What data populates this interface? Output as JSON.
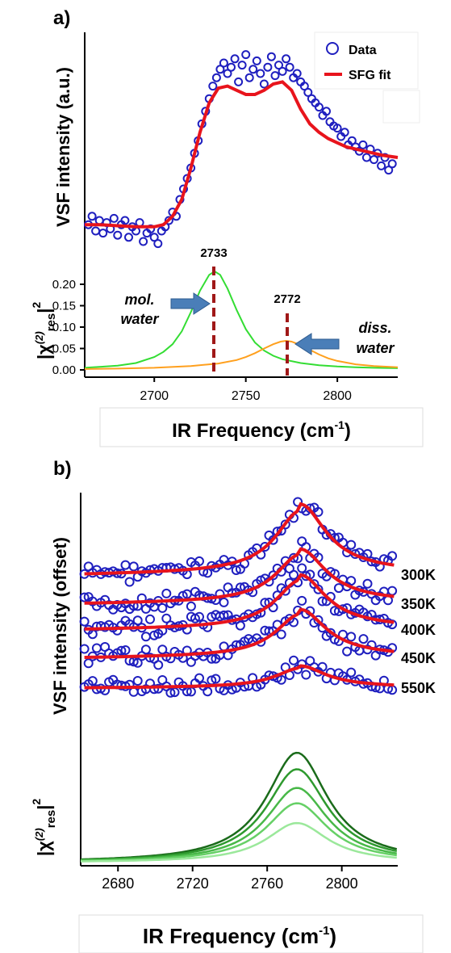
{
  "chart_data": [
    {
      "panel_label": "a)",
      "type": "scatter",
      "ylabel": "VSF intensity (a.u.)",
      "xlim": [
        2662,
        2833
      ],
      "ylim": [
        0,
        1
      ],
      "legend": {
        "placement": "top-right",
        "entries": [
          "Data",
          "SFG fit"
        ]
      },
      "series": [
        {
          "name": "Data",
          "type": "scatter",
          "color": "#1f1fbf",
          "x": [
            2664,
            2666,
            2668,
            2670,
            2672,
            2674,
            2676,
            2678,
            2680,
            2682,
            2684,
            2686,
            2688,
            2690,
            2692,
            2694,
            2696,
            2698,
            2700,
            2702,
            2704,
            2706,
            2708,
            2710,
            2712,
            2714,
            2716,
            2718,
            2720,
            2722,
            2724,
            2726,
            2728,
            2730,
            2732,
            2734,
            2736,
            2738,
            2740,
            2742,
            2744,
            2746,
            2748,
            2750,
            2752,
            2754,
            2756,
            2758,
            2760,
            2762,
            2764,
            2766,
            2768,
            2770,
            2772,
            2774,
            2776,
            2778,
            2780,
            2782,
            2784,
            2786,
            2788,
            2790,
            2792,
            2794,
            2796,
            2798,
            2800,
            2802,
            2804,
            2806,
            2808,
            2810,
            2812,
            2814,
            2816,
            2818,
            2820,
            2822,
            2824,
            2826,
            2828,
            2830
          ],
          "y": [
            0.18,
            0.22,
            0.15,
            0.2,
            0.14,
            0.19,
            0.16,
            0.21,
            0.13,
            0.18,
            0.2,
            0.12,
            0.17,
            0.15,
            0.19,
            0.1,
            0.14,
            0.16,
            0.12,
            0.09,
            0.15,
            0.17,
            0.2,
            0.24,
            0.22,
            0.3,
            0.35,
            0.4,
            0.45,
            0.52,
            0.58,
            0.66,
            0.72,
            0.78,
            0.84,
            0.88,
            0.92,
            0.95,
            0.9,
            0.93,
            0.97,
            0.86,
            0.94,
            0.99,
            0.88,
            0.92,
            0.96,
            0.9,
            0.85,
            0.93,
            0.98,
            0.89,
            0.94,
            0.91,
            0.97,
            0.93,
            0.88,
            0.9,
            0.86,
            0.84,
            0.81,
            0.78,
            0.76,
            0.74,
            0.7,
            0.72,
            0.67,
            0.65,
            0.64,
            0.6,
            0.62,
            0.56,
            0.58,
            0.55,
            0.53,
            0.56,
            0.5,
            0.54,
            0.49,
            0.52,
            0.46,
            0.5,
            0.44,
            0.47
          ]
        },
        {
          "name": "SFG fit",
          "type": "line",
          "color": "#e8141c",
          "x": [
            2662,
            2670,
            2680,
            2690,
            2700,
            2705,
            2710,
            2715,
            2720,
            2725,
            2730,
            2735,
            2740,
            2745,
            2750,
            2755,
            2760,
            2765,
            2770,
            2775,
            2780,
            2785,
            2790,
            2795,
            2800,
            2805,
            2810,
            2815,
            2820,
            2825,
            2833
          ],
          "y": [
            0.18,
            0.18,
            0.175,
            0.17,
            0.17,
            0.18,
            0.22,
            0.3,
            0.45,
            0.62,
            0.76,
            0.83,
            0.84,
            0.82,
            0.8,
            0.8,
            0.82,
            0.85,
            0.86,
            0.82,
            0.73,
            0.66,
            0.62,
            0.59,
            0.57,
            0.55,
            0.54,
            0.53,
            0.52,
            0.51,
            0.5
          ]
        }
      ]
    },
    {
      "panel_label": "a)",
      "type": "line",
      "ylabel": "|χ(2)res|2",
      "xlabel": "IR Frequency (cm-1)",
      "xlim": [
        2662,
        2833
      ],
      "ylim": [
        0,
        0.25
      ],
      "xticks": [
        2700,
        2750,
        2800
      ],
      "yticks": [
        "0.00",
        "0.05",
        "0.10",
        "0.15",
        "0.20"
      ],
      "series": [
        {
          "type": "line",
          "color": "#33dd33",
          "x": [
            2662,
            2670,
            2680,
            2690,
            2700,
            2705,
            2710,
            2715,
            2720,
            2725,
            2730,
            2733,
            2736,
            2740,
            2745,
            2750,
            2755,
            2760,
            2765,
            2770,
            2780,
            2790,
            2800,
            2810,
            2820,
            2833
          ],
          "y": [
            0.005,
            0.007,
            0.01,
            0.016,
            0.03,
            0.042,
            0.06,
            0.09,
            0.135,
            0.185,
            0.222,
            0.23,
            0.222,
            0.19,
            0.14,
            0.095,
            0.064,
            0.045,
            0.033,
            0.025,
            0.016,
            0.011,
            0.008,
            0.006,
            0.005,
            0.004
          ]
        },
        {
          "type": "line",
          "color": "#ffa01e",
          "x": [
            2662,
            2680,
            2700,
            2720,
            2735,
            2745,
            2750,
            2755,
            2760,
            2765,
            2769,
            2772,
            2775,
            2780,
            2785,
            2790,
            2795,
            2800,
            2810,
            2820,
            2833
          ],
          "y": [
            0.002,
            0.003,
            0.005,
            0.009,
            0.015,
            0.023,
            0.03,
            0.039,
            0.05,
            0.06,
            0.066,
            0.068,
            0.066,
            0.058,
            0.047,
            0.036,
            0.027,
            0.021,
            0.013,
            0.009,
            0.006
          ]
        }
      ],
      "annotations": [
        {
          "text": "2733",
          "x": 2733
        },
        {
          "text": "2772",
          "x": 2772
        },
        {
          "text": "mol.",
          "line2": "water"
        },
        {
          "text": "diss.",
          "line2": "water"
        }
      ]
    },
    {
      "panel_label": "b)",
      "type": "scatter",
      "ylabel": "VSF intensity (offset)",
      "xlim": [
        2660,
        2830
      ],
      "series": [
        {
          "name": "300K",
          "baseline": 0,
          "peak": 1.0
        },
        {
          "name": "350K",
          "baseline": 0,
          "peak": 0.8
        },
        {
          "name": "400K",
          "baseline": 0,
          "peak": 0.62
        },
        {
          "name": "450K",
          "baseline": 0,
          "peak": 0.46
        },
        {
          "name": "550K",
          "baseline": 0,
          "peak": 0.25
        }
      ],
      "peak_center": 2778
    },
    {
      "panel_label": "b)",
      "type": "line",
      "ylabel": "|χ(2)res|2",
      "xlabel": "IR Frequency (cm-1)",
      "xlim": [
        2660,
        2830
      ],
      "xticks": [
        2680,
        2720,
        2760,
        2800
      ],
      "peak_center": 2776,
      "series": [
        {
          "color": "#1a6b1a",
          "peak": 1.0
        },
        {
          "color": "#2e9a2e",
          "peak": 0.85
        },
        {
          "color": "#48b848",
          "peak": 0.68
        },
        {
          "color": "#66d066",
          "peak": 0.54
        },
        {
          "color": "#9be89b",
          "peak": 0.36
        }
      ]
    }
  ],
  "labels": {
    "panel_a": "a)",
    "panel_b": "b)",
    "legend_data": "Data",
    "legend_fit": "SFG fit",
    "ylabel_a_top": "VSF intensity (a.u.)",
    "ylabel_b_top": "VSF intensity (offset)",
    "peak1": "2733",
    "peak2": "2772",
    "mol1": "mol.",
    "mol2": "water",
    "diss1": "diss.",
    "diss2": "water",
    "xlabel_main": "IR Frequency (cm",
    "xlabel_sup": "-1",
    "xlabel_end": ")",
    "chi_left": "|χ",
    "chi_sup": "(2)",
    "chi_sub": "res",
    "chi_right": "|",
    "chi_sq": "2",
    "temps": [
      "300K",
      "350K",
      "400K",
      "450K",
      "550K"
    ],
    "ticks_a_x": [
      "2700",
      "2750",
      "2800"
    ],
    "ticks_a_y": [
      "0.00",
      "0.05",
      "0.10",
      "0.15",
      "0.20"
    ],
    "ticks_b_x": [
      "2680",
      "2720",
      "2760",
      "2800"
    ]
  }
}
